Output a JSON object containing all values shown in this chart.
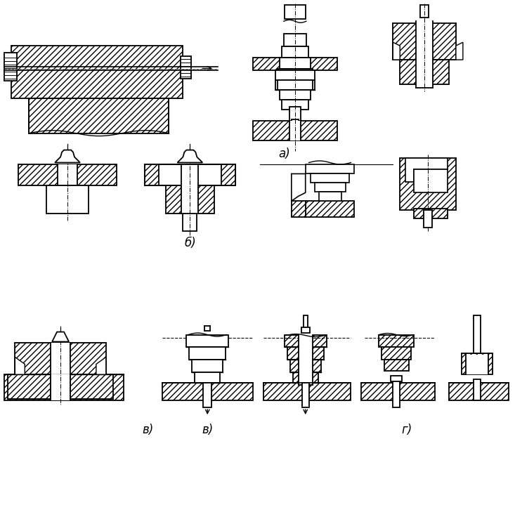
{
  "background": "#ffffff",
  "labels": {
    "a": "а)",
    "b": "б)",
    "v": "в)",
    "g": "г)"
  }
}
